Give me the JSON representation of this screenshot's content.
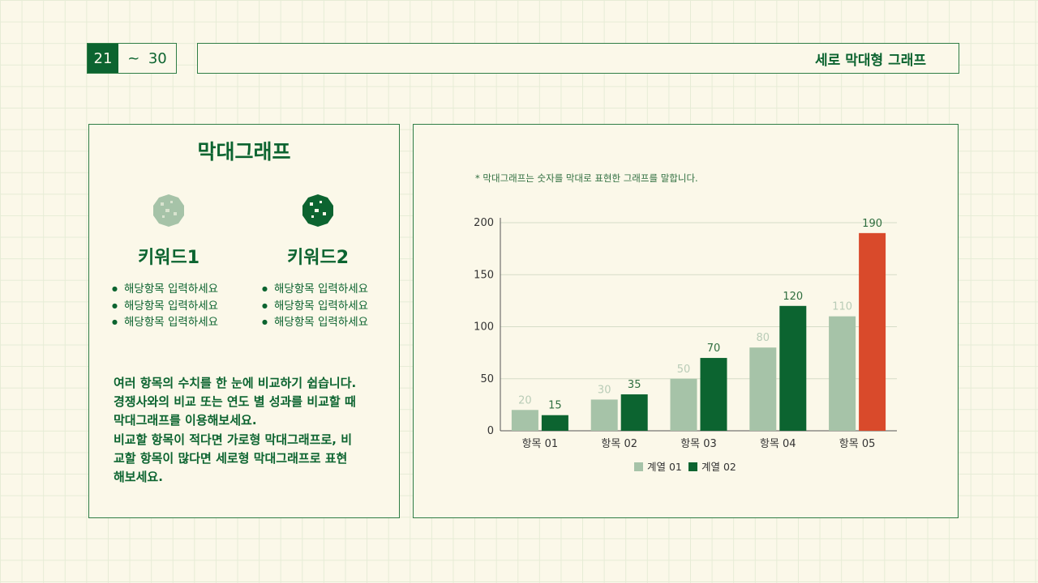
{
  "page": {
    "current": "21",
    "separator": "~",
    "end": "30"
  },
  "header": {
    "title": "세로 막대형 그래프"
  },
  "left_panel": {
    "title": "막대그래프",
    "keywords": [
      {
        "title": "키워드1",
        "icon_color": "#a6c3a8",
        "items": [
          "해당항목 입력하세요",
          "해당항목 입력하세요",
          "해당항목 입력하세요"
        ]
      },
      {
        "title": "키워드2",
        "icon_color": "#0c6430",
        "items": [
          "해당항목 입력하세요",
          "해당항목 입력하세요",
          "해당항목 입력하세요"
        ]
      }
    ],
    "description": [
      "여러 항목의 수치를 한 눈에 비교하기 쉽습니다.",
      "경쟁사와의 비교 또는 연도 별 성과를 비교할 때",
      "막대그래프를 이용해보세요.",
      "비교할 항목이 적다면 가로형 막대그래프로, 비",
      "교할 항목이 많다면 세로형 막대그래프로 표현",
      "해보세요."
    ]
  },
  "chart_note": "* 막대그래프는 숫자를 막대로 표현한 그래프를 말합니다.",
  "colors": {
    "series1": "#a6c3a8",
    "series2": "#0c6430",
    "highlight": "#d94a2b"
  },
  "chart_data": {
    "type": "bar",
    "categories": [
      "항목 01",
      "항목 02",
      "항목 03",
      "항목 04",
      "항목 05"
    ],
    "series": [
      {
        "name": "계열 01",
        "values": [
          20,
          30,
          50,
          80,
          110
        ]
      },
      {
        "name": "계열 02",
        "values": [
          15,
          35,
          70,
          120,
          190
        ]
      }
    ],
    "highlight": {
      "series": 1,
      "category": 4
    },
    "ylim": [
      0,
      200
    ],
    "yticks": [
      "0",
      "50",
      "100",
      "150",
      "200"
    ],
    "legend": "bottom",
    "grid": true
  }
}
